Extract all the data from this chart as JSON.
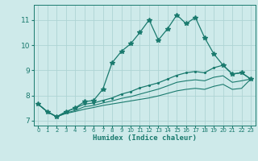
{
  "xlabel": "Humidex (Indice chaleur)",
  "ylabel": "",
  "bg_color": "#ceeaea",
  "line_color": "#1a7a6e",
  "grid_color": "#aed4d4",
  "xlim": [
    -0.5,
    23.5
  ],
  "ylim": [
    6.8,
    11.6
  ],
  "yticks": [
    7,
    8,
    9,
    10,
    11
  ],
  "xticks": [
    0,
    1,
    2,
    3,
    4,
    5,
    6,
    7,
    8,
    9,
    10,
    11,
    12,
    13,
    14,
    15,
    16,
    17,
    18,
    19,
    20,
    21,
    22,
    23
  ],
  "series": [
    [
      7.65,
      7.35,
      7.15,
      7.35,
      7.5,
      7.75,
      7.8,
      8.25,
      9.3,
      9.75,
      10.05,
      10.5,
      11.0,
      10.2,
      10.65,
      11.2,
      10.85,
      11.1,
      10.3,
      9.65,
      9.2,
      8.85,
      8.9,
      8.65
    ],
    [
      7.65,
      7.35,
      7.15,
      7.35,
      7.5,
      7.65,
      7.7,
      7.8,
      7.9,
      8.05,
      8.15,
      8.3,
      8.4,
      8.5,
      8.65,
      8.8,
      8.9,
      8.95,
      8.9,
      9.1,
      9.2,
      8.85,
      8.9,
      8.65
    ],
    [
      7.65,
      7.35,
      7.15,
      7.3,
      7.4,
      7.55,
      7.6,
      7.7,
      7.78,
      7.88,
      7.95,
      8.05,
      8.15,
      8.25,
      8.38,
      8.52,
      8.58,
      8.62,
      8.58,
      8.72,
      8.78,
      8.52,
      8.58,
      8.65
    ],
    [
      7.65,
      7.35,
      7.15,
      7.28,
      7.36,
      7.45,
      7.52,
      7.6,
      7.66,
      7.72,
      7.78,
      7.84,
      7.9,
      7.98,
      8.08,
      8.18,
      8.24,
      8.28,
      8.24,
      8.36,
      8.44,
      8.24,
      8.28,
      8.65
    ]
  ]
}
